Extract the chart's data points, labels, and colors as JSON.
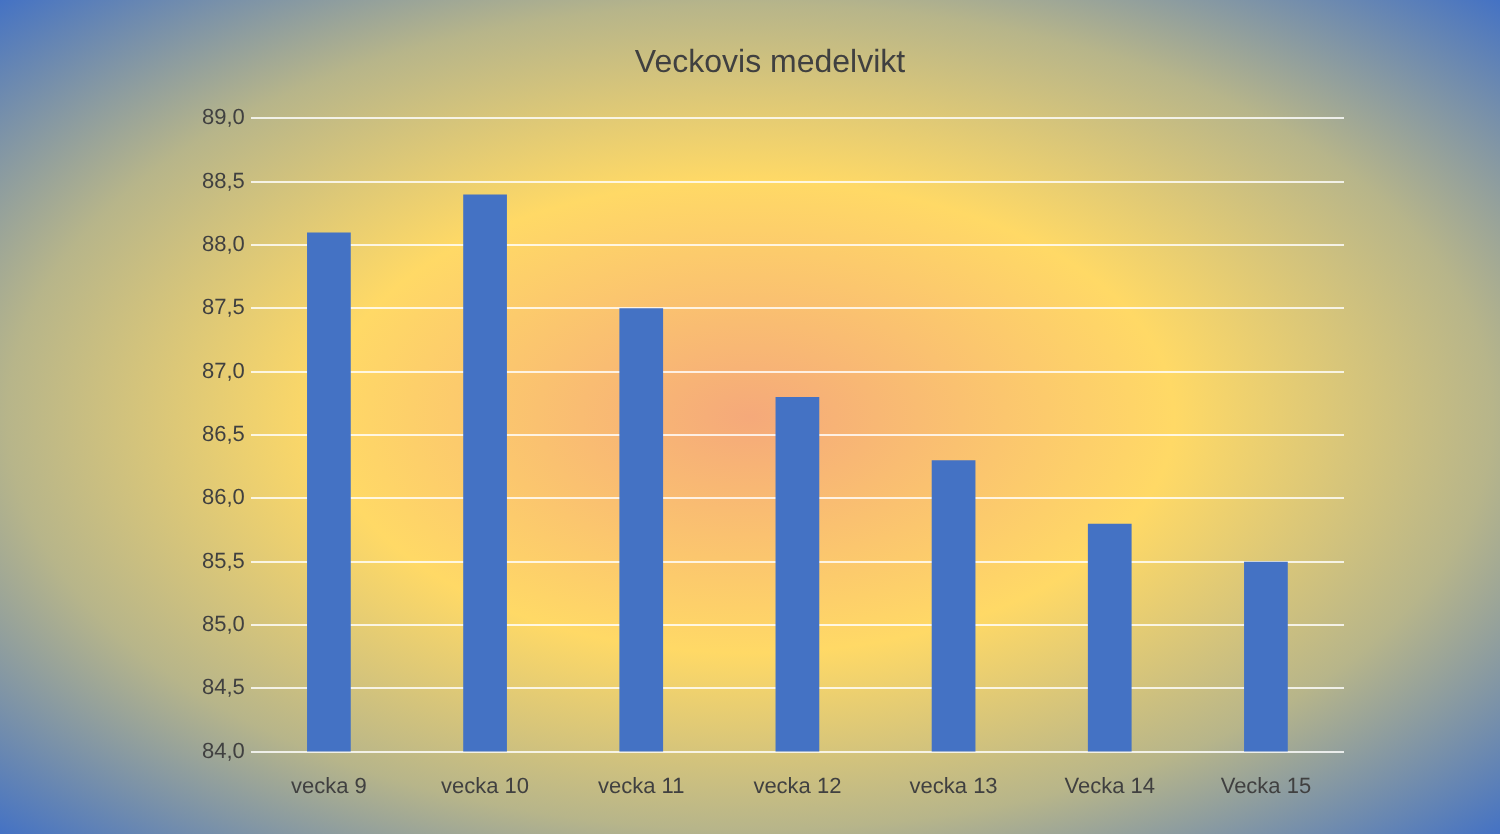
{
  "chart_data": {
    "type": "bar",
    "title": "Veckovis medelvikt",
    "categories": [
      "vecka 9",
      "vecka 10",
      "vecka 11",
      "vecka 12",
      "vecka 13",
      "Vecka 14",
      "Vecka 15"
    ],
    "values": [
      88.1,
      88.4,
      87.5,
      86.8,
      86.3,
      85.8,
      85.5
    ],
    "color": "#4472c4",
    "ylim": [
      84,
      89
    ],
    "yticks": [
      {
        "value": 84,
        "label": "84,0"
      },
      {
        "value": 84.5,
        "label": "84,5"
      },
      {
        "value": 85,
        "label": "85,0"
      },
      {
        "value": 85.5,
        "label": "85,5"
      },
      {
        "value": 86,
        "label": "86,0"
      },
      {
        "value": 86.5,
        "label": "86,5"
      },
      {
        "value": 87,
        "label": "87,0"
      },
      {
        "value": 87.5,
        "label": "87,5"
      },
      {
        "value": 88,
        "label": "88,0"
      },
      {
        "value": 88.5,
        "label": "88,5"
      },
      {
        "value": 89,
        "label": "89,0"
      }
    ],
    "grid": "y"
  }
}
